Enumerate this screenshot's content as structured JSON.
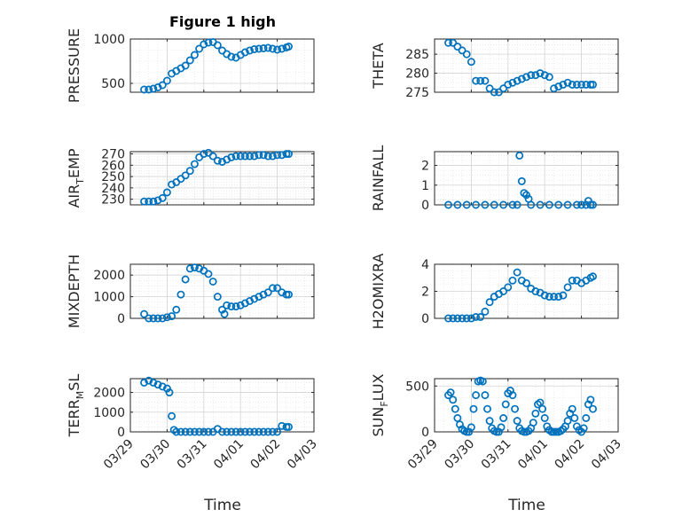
{
  "figure": {
    "title": "Figure 1 high",
    "xlabel": "Time",
    "x_tick_labels": [
      "03/29",
      "03/30",
      "03/31",
      "04/01",
      "04/02",
      "04/03"
    ]
  },
  "colors": {
    "series": "#0072BD",
    "axes": "#262626",
    "grid": "#d4d4d4"
  },
  "chart_data": [
    {
      "type": "scatter",
      "ylabel": "PRESSURE",
      "ylim": [
        400,
        1000
      ],
      "yticks": [
        500,
        1000
      ],
      "xlim": [
        0,
        4
      ],
      "grid": true,
      "x": [
        0.3,
        0.4,
        0.5,
        0.6,
        0.7,
        0.8,
        0.9,
        1.0,
        1.1,
        1.2,
        1.3,
        1.4,
        1.5,
        1.6,
        1.7,
        1.8,
        1.9,
        2.0,
        2.1,
        2.2,
        2.3,
        2.4,
        2.5,
        2.6,
        2.7,
        2.8,
        2.9,
        3.0,
        3.1,
        3.2,
        3.3,
        3.4,
        3.45
      ],
      "y": [
        430,
        430,
        440,
        455,
        480,
        530,
        610,
        640,
        670,
        700,
        760,
        820,
        890,
        940,
        960,
        965,
        930,
        870,
        830,
        800,
        790,
        820,
        850,
        870,
        885,
        890,
        895,
        900,
        890,
        880,
        890,
        905,
        915
      ]
    },
    {
      "type": "scatter",
      "ylabel": "THETA",
      "ylim": [
        275,
        289
      ],
      "yticks": [
        275,
        280,
        285
      ],
      "xlim": [
        0,
        4
      ],
      "grid": true,
      "x": [
        0.3,
        0.4,
        0.5,
        0.6,
        0.7,
        0.8,
        0.9,
        1.0,
        1.1,
        1.2,
        1.3,
        1.4,
        1.5,
        1.6,
        1.7,
        1.8,
        1.9,
        2.0,
        2.1,
        2.2,
        2.3,
        2.4,
        2.5,
        2.6,
        2.7,
        2.8,
        2.9,
        3.0,
        3.1,
        3.2,
        3.3,
        3.4,
        3.45
      ],
      "y": [
        288,
        288,
        287,
        286,
        285,
        283,
        278,
        278,
        278,
        276,
        275,
        275,
        276,
        277,
        277.5,
        278,
        278.5,
        279,
        279.5,
        279.5,
        280,
        279.5,
        279,
        276,
        276.5,
        277,
        277.5,
        277,
        277,
        277,
        277,
        277,
        277
      ]
    },
    {
      "type": "scatter",
      "ylabel": "AIR_TEMP",
      "ylim": [
        225,
        272
      ],
      "yticks": [
        230,
        240,
        250,
        260,
        270
      ],
      "xlim": [
        0,
        4
      ],
      "grid": true,
      "x": [
        0.3,
        0.4,
        0.5,
        0.6,
        0.7,
        0.8,
        0.9,
        1.0,
        1.1,
        1.2,
        1.3,
        1.4,
        1.5,
        1.6,
        1.7,
        1.8,
        1.9,
        2.0,
        2.1,
        2.2,
        2.3,
        2.4,
        2.5,
        2.6,
        2.7,
        2.8,
        2.9,
        3.0,
        3.1,
        3.2,
        3.3,
        3.4,
        3.45
      ],
      "y": [
        228,
        228,
        228,
        229,
        231,
        236,
        243,
        245,
        248,
        251,
        255,
        261,
        267,
        270,
        271,
        268,
        264,
        263,
        265,
        267,
        268,
        268,
        268,
        268,
        268,
        269,
        269,
        268,
        268,
        269,
        269,
        270,
        270
      ]
    },
    {
      "type": "scatter",
      "ylabel": "RAINFALL",
      "ylim": [
        0,
        2.7
      ],
      "yticks": [
        0,
        1,
        2
      ],
      "xlim": [
        0,
        4
      ],
      "grid": true,
      "x": [
        0.3,
        0.5,
        0.7,
        0.9,
        1.1,
        1.3,
        1.5,
        1.7,
        1.8,
        1.85,
        1.9,
        1.95,
        2.0,
        2.05,
        2.1,
        2.3,
        2.5,
        2.7,
        2.9,
        3.1,
        3.2,
        3.3,
        3.35,
        3.4,
        3.45
      ],
      "y": [
        0,
        0,
        0,
        0,
        0,
        0,
        0,
        0,
        0,
        2.5,
        1.2,
        0.6,
        0.5,
        0.3,
        0,
        0,
        0,
        0,
        0,
        0,
        0,
        0,
        0.2,
        0,
        0
      ]
    },
    {
      "type": "scatter",
      "ylabel": "MIXDEPTH",
      "ylim": [
        0,
        2500
      ],
      "yticks": [
        0,
        1000,
        2000
      ],
      "xlim": [
        0,
        4
      ],
      "grid": true,
      "x": [
        0.3,
        0.4,
        0.5,
        0.6,
        0.7,
        0.8,
        0.9,
        1.0,
        1.1,
        1.2,
        1.3,
        1.4,
        1.5,
        1.6,
        1.7,
        1.8,
        1.9,
        2.0,
        2.05,
        2.1,
        2.2,
        2.3,
        2.4,
        2.5,
        2.6,
        2.7,
        2.8,
        2.9,
        3.0,
        3.1,
        3.2,
        3.3,
        3.4,
        3.45
      ],
      "y": [
        200,
        0,
        0,
        0,
        0,
        50,
        100,
        400,
        1100,
        1800,
        2300,
        2350,
        2300,
        2200,
        2050,
        1700,
        1000,
        400,
        200,
        600,
        550,
        550,
        600,
        700,
        800,
        900,
        1000,
        1100,
        1200,
        1400,
        1400,
        1200,
        1100,
        1100
      ]
    },
    {
      "type": "scatter",
      "ylabel": "H2OMIXRA",
      "ylim": [
        0,
        4
      ],
      "yticks": [
        0,
        2,
        4
      ],
      "xlim": [
        0,
        4
      ],
      "grid": true,
      "x": [
        0.3,
        0.4,
        0.5,
        0.6,
        0.7,
        0.8,
        0.9,
        1.0,
        1.1,
        1.2,
        1.3,
        1.4,
        1.5,
        1.6,
        1.7,
        1.8,
        1.9,
        2.0,
        2.1,
        2.2,
        2.3,
        2.4,
        2.5,
        2.6,
        2.7,
        2.8,
        2.9,
        3.0,
        3.1,
        3.2,
        3.3,
        3.4,
        3.45
      ],
      "y": [
        0,
        0,
        0,
        0,
        0,
        0,
        0.1,
        0.1,
        0.5,
        1.2,
        1.6,
        1.8,
        2.0,
        2.3,
        2.8,
        3.4,
        2.8,
        2.6,
        2.2,
        2.0,
        1.9,
        1.7,
        1.6,
        1.6,
        1.6,
        1.7,
        2.3,
        2.8,
        2.8,
        2.6,
        2.8,
        3.0,
        3.1
      ]
    },
    {
      "type": "scatter",
      "ylabel": "TERR_MSL",
      "ylim": [
        0,
        2700
      ],
      "yticks": [
        0,
        1000,
        2000
      ],
      "xlim": [
        0,
        4
      ],
      "grid": true,
      "x": [
        0.3,
        0.4,
        0.5,
        0.6,
        0.7,
        0.8,
        0.85,
        0.9,
        0.95,
        1.0,
        1.1,
        1.2,
        1.3,
        1.4,
        1.5,
        1.6,
        1.7,
        1.8,
        1.9,
        2.0,
        2.1,
        2.2,
        2.3,
        2.4,
        2.5,
        2.6,
        2.7,
        2.8,
        2.9,
        3.0,
        3.1,
        3.2,
        3.3,
        3.4,
        3.45
      ],
      "y": [
        2500,
        2600,
        2500,
        2400,
        2300,
        2200,
        2000,
        800,
        100,
        0,
        0,
        0,
        0,
        0,
        0,
        0,
        0,
        0,
        150,
        0,
        0,
        0,
        0,
        0,
        0,
        0,
        0,
        0,
        0,
        0,
        0,
        0,
        300,
        250,
        250
      ]
    },
    {
      "type": "scatter",
      "ylabel": "SUN_FLUX",
      "ylim": [
        0,
        580
      ],
      "yticks": [
        0,
        500
      ],
      "xlim": [
        0,
        4
      ],
      "grid": true,
      "x": [
        0.3,
        0.35,
        0.4,
        0.45,
        0.5,
        0.55,
        0.6,
        0.65,
        0.7,
        0.75,
        0.8,
        0.85,
        0.9,
        0.95,
        1.0,
        1.05,
        1.1,
        1.15,
        1.2,
        1.25,
        1.3,
        1.35,
        1.4,
        1.45,
        1.5,
        1.55,
        1.6,
        1.65,
        1.7,
        1.75,
        1.8,
        1.85,
        1.9,
        1.95,
        2.0,
        2.05,
        2.1,
        2.15,
        2.2,
        2.25,
        2.3,
        2.35,
        2.4,
        2.45,
        2.5,
        2.55,
        2.6,
        2.65,
        2.7,
        2.75,
        2.8,
        2.85,
        2.9,
        2.95,
        3.0,
        3.05,
        3.1,
        3.15,
        3.2,
        3.25,
        3.3,
        3.35,
        3.4,
        3.45
      ],
      "y": [
        400,
        430,
        350,
        250,
        150,
        80,
        30,
        10,
        0,
        0,
        50,
        250,
        400,
        550,
        560,
        550,
        400,
        250,
        120,
        40,
        10,
        0,
        0,
        50,
        150,
        300,
        420,
        450,
        400,
        250,
        120,
        40,
        10,
        0,
        0,
        10,
        40,
        100,
        200,
        300,
        320,
        250,
        150,
        60,
        20,
        0,
        0,
        0,
        0,
        10,
        30,
        60,
        120,
        200,
        250,
        150,
        60,
        20,
        0,
        40,
        150,
        300,
        350,
        250
      ]
    }
  ]
}
